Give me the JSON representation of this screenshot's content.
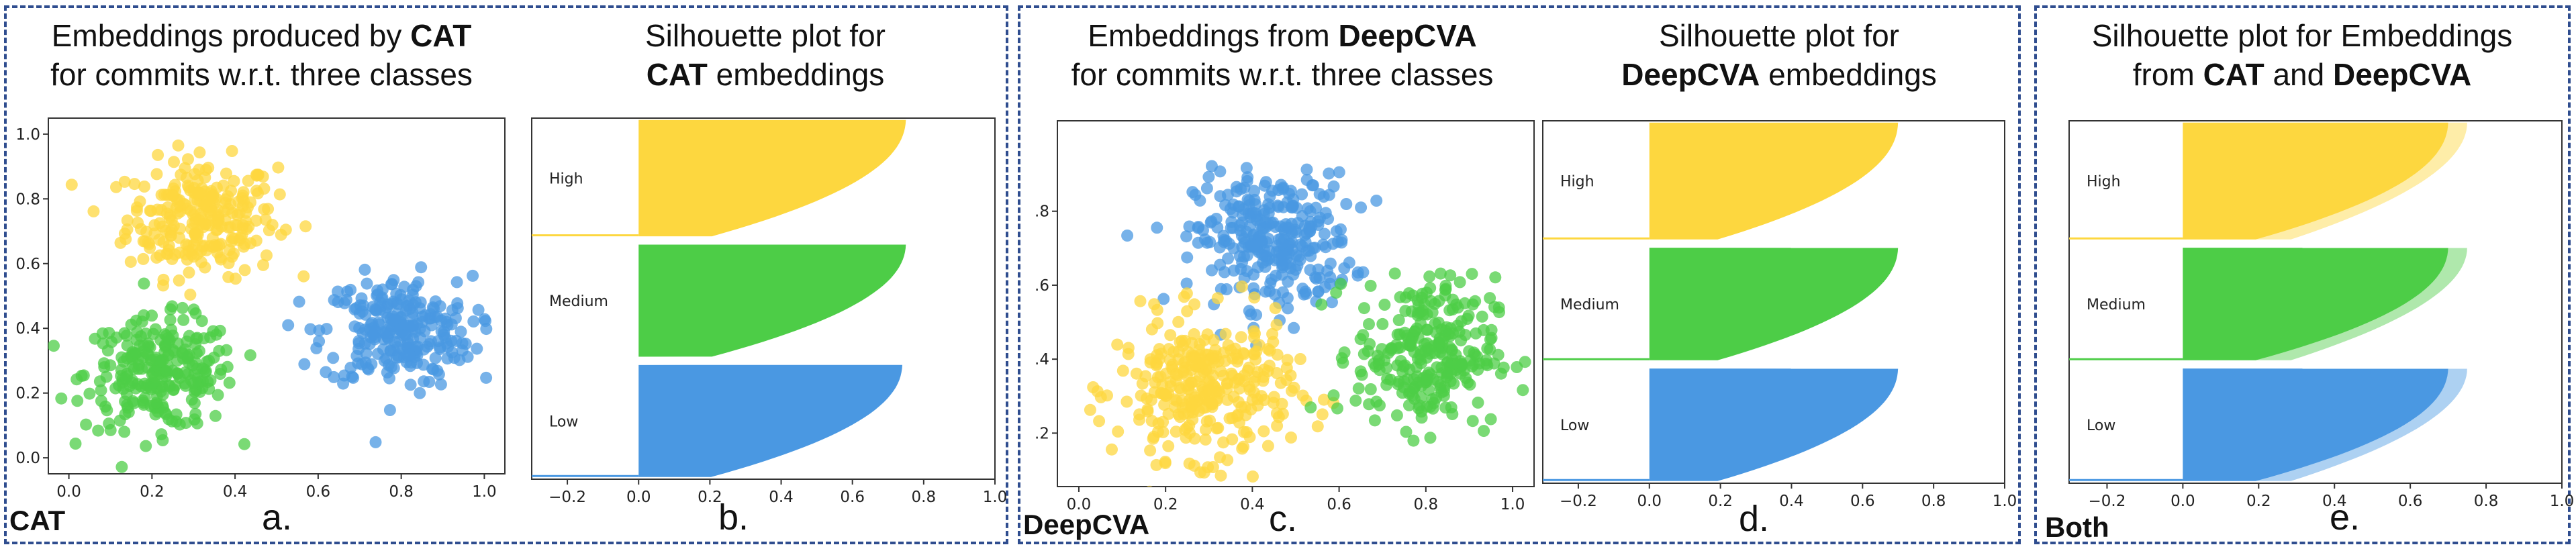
{
  "panels": [
    {
      "title_pre": "Embeddings produced by ",
      "title_bold": "CAT",
      "title_line2": "for commits w.r.t. three classes"
    },
    {
      "title_pre": "Silhouette plot for",
      "title_line2_bold": "CAT",
      "title_line2_post": " embeddings"
    },
    {
      "title_pre": "Embeddings from ",
      "title_bold": "DeepCVA",
      "title_line2": "for commits w.r.t. three classes"
    },
    {
      "title_pre": "Silhouette plot for",
      "title_line2_bold": "DeepCVA",
      "title_line2_post": " embeddings"
    },
    {
      "title_pre": "Silhouette plot for Embeddings",
      "title_line2_pre": "from ",
      "title_line2_bold": "CAT",
      "title_line2_mid": " and ",
      "title_line2_bold2": "DeepCVA"
    }
  ],
  "labels": {
    "corner_cat": "CAT",
    "corner_deepcva": "DeepCVA",
    "corner_both": "Both",
    "letter_a": "a.",
    "letter_b": "b.",
    "letter_c": "c.",
    "letter_d": "d.",
    "letter_e": "e."
  },
  "colors": {
    "high": "#fdd73f",
    "medium": "#4dcd47",
    "low": "#4a98e2",
    "border": "#2f4d8f"
  },
  "chart_data": [
    {
      "id": "a",
      "type": "scatter",
      "xlim": [
        0.0,
        1.0
      ],
      "ylim": [
        0.0,
        1.0
      ],
      "xticks": [
        "0.0",
        "0.2",
        "0.4",
        "0.6",
        "0.8",
        "1.0"
      ],
      "yticks": [
        "0.0",
        "0.2",
        "0.4",
        "0.6",
        "0.8",
        "1.0"
      ],
      "clusters": [
        {
          "class": "High",
          "color": "#fdd73f",
          "center": [
            0.32,
            0.74
          ],
          "spread": [
            0.09,
            0.09
          ],
          "n": 260
        },
        {
          "class": "Medium",
          "color": "#4dcd47",
          "center": [
            0.22,
            0.26
          ],
          "spread": [
            0.09,
            0.085
          ],
          "n": 260
        },
        {
          "class": "Low",
          "color": "#4a98e2",
          "center": [
            0.79,
            0.39
          ],
          "spread": [
            0.09,
            0.085
          ],
          "n": 260
        }
      ]
    },
    {
      "id": "b",
      "type": "silhouette",
      "xlim": [
        -0.3,
        1.0
      ],
      "xticks": [
        "−0.2",
        "0.0",
        "0.2",
        "0.4",
        "0.6",
        "0.8",
        "1.0"
      ],
      "clusters": [
        {
          "label": "High",
          "color": "#fdd73f",
          "max": 0.75,
          "min_neg": -0.3
        },
        {
          "label": "Medium",
          "color": "#4dcd47",
          "max": 0.75,
          "min_neg": 0.0
        },
        {
          "label": "Low",
          "color": "#4a98e2",
          "max": 0.74,
          "min_neg": -0.3
        }
      ]
    },
    {
      "id": "c",
      "type": "scatter",
      "xlim": [
        0.0,
        1.0
      ],
      "ylim": [
        0.1,
        1.0
      ],
      "xticks": [
        "0.0",
        "0.2",
        "0.4",
        "0.6",
        "0.8",
        "1.0"
      ],
      "yticks": [
        ".2",
        ".4",
        ".6",
        ".8"
      ],
      "clusters": [
        {
          "class": "Low",
          "color": "#4a98e2",
          "center": [
            0.45,
            0.72
          ],
          "spread": [
            0.09,
            0.09
          ],
          "n": 300
        },
        {
          "class": "High",
          "color": "#fdd73f",
          "center": [
            0.29,
            0.32
          ],
          "spread": [
            0.1,
            0.095
          ],
          "n": 320
        },
        {
          "class": "Medium",
          "color": "#4dcd47",
          "center": [
            0.8,
            0.42
          ],
          "spread": [
            0.08,
            0.1
          ],
          "n": 280
        }
      ]
    },
    {
      "id": "d",
      "type": "silhouette",
      "xlim": [
        -0.3,
        1.0
      ],
      "xticks": [
        "−0.2",
        "0.0",
        "0.2",
        "0.4",
        "0.6",
        "0.8",
        "1.0"
      ],
      "clusters": [
        {
          "label": "High",
          "color": "#fdd73f",
          "max": 0.7,
          "min_neg": -0.3
        },
        {
          "label": "Medium",
          "color": "#4dcd47",
          "max": 0.7,
          "min_neg": -0.3
        },
        {
          "label": "Low",
          "color": "#4a98e2",
          "max": 0.7,
          "min_neg": -0.3
        }
      ]
    },
    {
      "id": "e",
      "type": "silhouette",
      "xlim": [
        -0.3,
        1.0
      ],
      "xticks": [
        "−0.2",
        "0.0",
        "0.2",
        "0.4",
        "0.6",
        "0.8",
        "1.0"
      ],
      "clusters": [
        {
          "label": "High",
          "color": "#fdd73f",
          "max": 0.7,
          "max2": 0.75,
          "min_neg": -0.3
        },
        {
          "label": "Medium",
          "color": "#4dcd47",
          "max": 0.7,
          "max2": 0.75,
          "min_neg": -0.3
        },
        {
          "label": "Low",
          "color": "#4a98e2",
          "max": 0.7,
          "max2": 0.75,
          "min_neg": -0.3
        }
      ]
    }
  ]
}
